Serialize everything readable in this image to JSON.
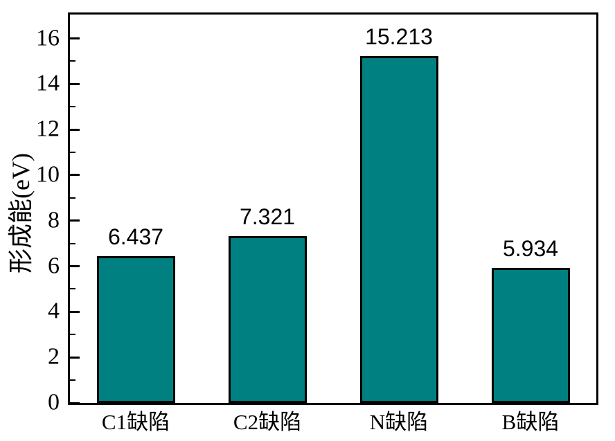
{
  "figure": {
    "background_color": "#ffffff",
    "axis_color": "#000000"
  },
  "chart_data": {
    "type": "bar",
    "title": "",
    "categories": [
      "C1缺陷",
      "C2缺陷",
      "N缺陷",
      "B缺陷"
    ],
    "values": [
      6.437,
      7.321,
      15.213,
      5.934
    ],
    "value_labels": [
      "6.437",
      "7.321",
      "15.213",
      "5.934"
    ],
    "xlabel": "",
    "ylabel": "形成能(eV)",
    "ylim": [
      0,
      17.05
    ],
    "y_major_ticks": [
      0,
      2,
      4,
      6,
      8,
      10,
      12,
      14,
      16
    ],
    "y_minor_ticks": [
      1,
      3,
      5,
      7,
      9,
      11,
      13,
      15
    ],
    "grid": false,
    "legend": false,
    "bar_color": "#008080",
    "bar_border_color": "#000000",
    "bar_width_fraction": 0.595
  }
}
